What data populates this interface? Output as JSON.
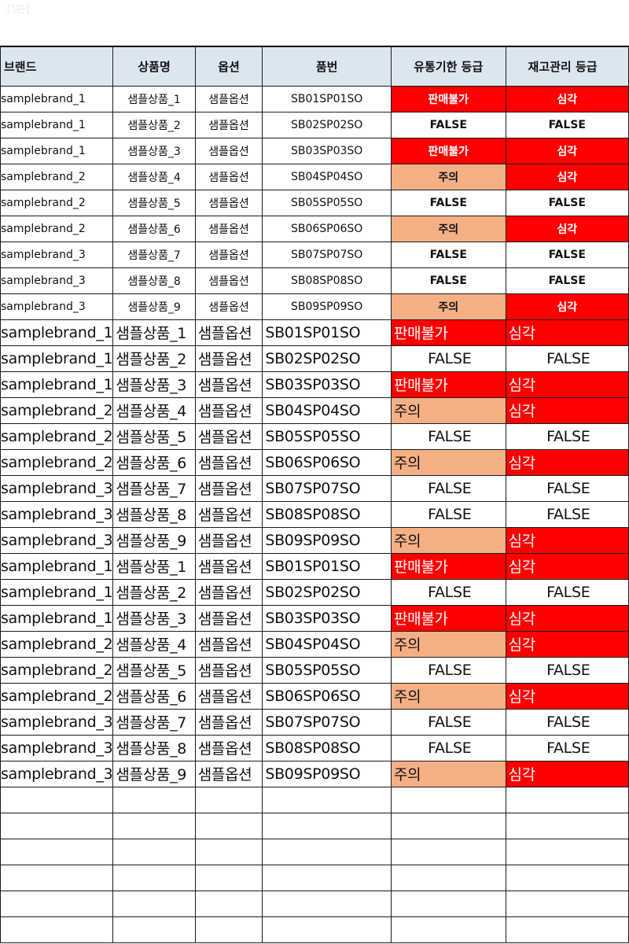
{
  "watermark": ".net",
  "headers": [
    "브랜드",
    "상품명",
    "옵션",
    "품번",
    "유통기한 등급",
    "재고관리 등급"
  ],
  "colors": {
    "header_bg": "#dce6f1",
    "critical": "#ff0000",
    "caution": "#f4b084"
  },
  "block1": [
    {
      "brand": "samplebrand_1",
      "name": "샘플상품_1",
      "option": "샘플옵션",
      "code": "SB01SP01SO",
      "expiry": "판매불가",
      "stock": "심각"
    },
    {
      "brand": "samplebrand_1",
      "name": "샘플상품_2",
      "option": "샘플옵션",
      "code": "SB02SP02SO",
      "expiry": "FALSE",
      "stock": "FALSE"
    },
    {
      "brand": "samplebrand_1",
      "name": "샘플상품_3",
      "option": "샘플옵션",
      "code": "SB03SP03SO",
      "expiry": "판매불가",
      "stock": "심각"
    },
    {
      "brand": "samplebrand_2",
      "name": "샘플상품_4",
      "option": "샘플옵션",
      "code": "SB04SP04SO",
      "expiry": "주의",
      "stock": "심각"
    },
    {
      "brand": "samplebrand_2",
      "name": "샘플상품_5",
      "option": "샘플옵션",
      "code": "SB05SP05SO",
      "expiry": "FALSE",
      "stock": "FALSE"
    },
    {
      "brand": "samplebrand_2",
      "name": "샘플상품_6",
      "option": "샘플옵션",
      "code": "SB06SP06SO",
      "expiry": "주의",
      "stock": "심각"
    },
    {
      "brand": "samplebrand_3",
      "name": "샘플상품_7",
      "option": "샘플옵션",
      "code": "SB07SP07SO",
      "expiry": "FALSE",
      "stock": "FALSE"
    },
    {
      "brand": "samplebrand_3",
      "name": "샘플상품_8",
      "option": "샘플옵션",
      "code": "SB08SP08SO",
      "expiry": "FALSE",
      "stock": "FALSE"
    },
    {
      "brand": "samplebrand_3",
      "name": "샘플상품_9",
      "option": "샘플옵션",
      "code": "SB09SP09SO",
      "expiry": "주의",
      "stock": "심각"
    }
  ],
  "block2": [
    {
      "brand": "samplebrand_1",
      "name": "샘플상품_1",
      "option": "샘플옵션",
      "code": "SB01SP01SO",
      "expiry": "판매불가",
      "stock": "심각"
    },
    {
      "brand": "samplebrand_1",
      "name": "샘플상품_2",
      "option": "샘플옵션",
      "code": "SB02SP02SO",
      "expiry": "FALSE",
      "stock": "FALSE"
    },
    {
      "brand": "samplebrand_1",
      "name": "샘플상품_3",
      "option": "샘플옵션",
      "code": "SB03SP03SO",
      "expiry": "판매불가",
      "stock": "심각"
    },
    {
      "brand": "samplebrand_2",
      "name": "샘플상품_4",
      "option": "샘플옵션",
      "code": "SB04SP04SO",
      "expiry": "주의",
      "stock": "심각"
    },
    {
      "brand": "samplebrand_2",
      "name": "샘플상품_5",
      "option": "샘플옵션",
      "code": "SB05SP05SO",
      "expiry": "FALSE",
      "stock": "FALSE"
    },
    {
      "brand": "samplebrand_2",
      "name": "샘플상품_6",
      "option": "샘플옵션",
      "code": "SB06SP06SO",
      "expiry": "주의",
      "stock": "심각"
    },
    {
      "brand": "samplebrand_3",
      "name": "샘플상품_7",
      "option": "샘플옵션",
      "code": "SB07SP07SO",
      "expiry": "FALSE",
      "stock": "FALSE"
    },
    {
      "brand": "samplebrand_3",
      "name": "샘플상품_8",
      "option": "샘플옵션",
      "code": "SB08SP08SO",
      "expiry": "FALSE",
      "stock": "FALSE"
    },
    {
      "brand": "samplebrand_3",
      "name": "샘플상품_9",
      "option": "샘플옵션",
      "code": "SB09SP09SO",
      "expiry": "주의",
      "stock": "심각"
    }
  ],
  "block3": [
    {
      "brand": "samplebrand_1",
      "name": "샘플상품_1",
      "option": "샘플옵션",
      "code": "SB01SP01SO",
      "expiry": "판매불가",
      "stock": "심각"
    },
    {
      "brand": "samplebrand_1",
      "name": "샘플상품_2",
      "option": "샘플옵션",
      "code": "SB02SP02SO",
      "expiry": "FALSE",
      "stock": "FALSE"
    },
    {
      "brand": "samplebrand_1",
      "name": "샘플상품_3",
      "option": "샘플옵션",
      "code": "SB03SP03SO",
      "expiry": "판매불가",
      "stock": "심각"
    },
    {
      "brand": "samplebrand_2",
      "name": "샘플상품_4",
      "option": "샘플옵션",
      "code": "SB04SP04SO",
      "expiry": "주의",
      "stock": "심각"
    },
    {
      "brand": "samplebrand_2",
      "name": "샘플상품_5",
      "option": "샘플옵션",
      "code": "SB05SP05SO",
      "expiry": "FALSE",
      "stock": "FALSE"
    },
    {
      "brand": "samplebrand_2",
      "name": "샘플상품_6",
      "option": "샘플옵션",
      "code": "SB06SP06SO",
      "expiry": "주의",
      "stock": "심각"
    },
    {
      "brand": "samplebrand_3",
      "name": "샘플상품_7",
      "option": "샘플옵션",
      "code": "SB07SP07SO",
      "expiry": "FALSE",
      "stock": "FALSE"
    },
    {
      "brand": "samplebrand_3",
      "name": "샘플상품_8",
      "option": "샘플옵션",
      "code": "SB08SP08SO",
      "expiry": "FALSE",
      "stock": "FALSE"
    },
    {
      "brand": "samplebrand_3",
      "name": "샘플상품_9",
      "option": "샘플옵션",
      "code": "SB09SP09SO",
      "expiry": "주의",
      "stock": "심각"
    }
  ],
  "empty_rows": 6
}
